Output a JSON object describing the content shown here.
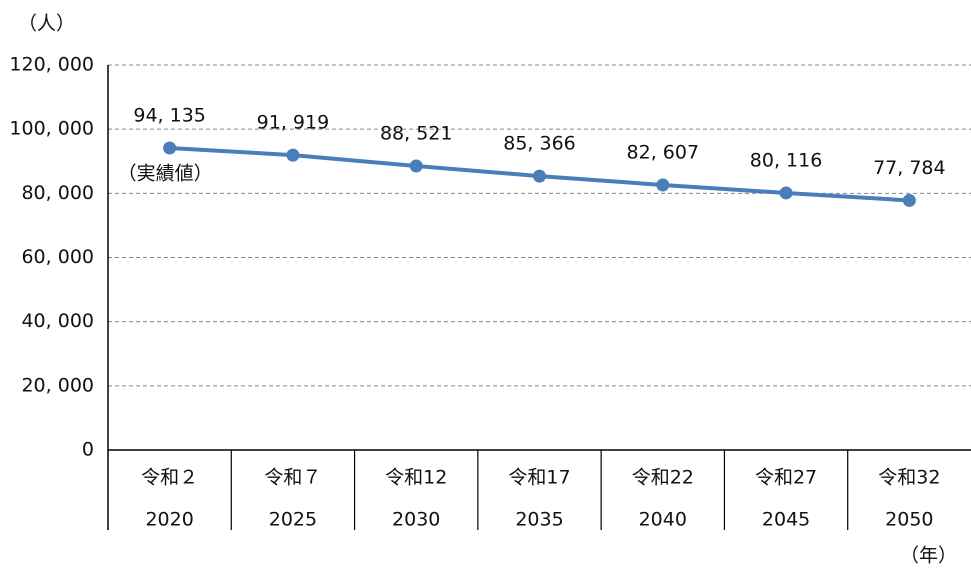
{
  "chart_data": {
    "type": "line",
    "y_unit": "（人）",
    "x_unit": "（年）",
    "categories": [
      "令和２",
      "令和７",
      "令和12",
      "令和17",
      "令和22",
      "令和27",
      "令和32"
    ],
    "category_years": [
      "2020",
      "2025",
      "2030",
      "2035",
      "2040",
      "2045",
      "2050"
    ],
    "series": [
      {
        "color": "#4a7ebb",
        "values": [
          94135,
          91919,
          88521,
          85366,
          82607,
          80116,
          77784
        ],
        "value_labels": [
          "94, 135",
          "91, 919",
          "88, 521",
          "85, 366",
          "82, 607",
          "80, 116",
          "77, 784"
        ]
      }
    ],
    "annotation": "（実績値）",
    "ylim": [
      0,
      120000
    ],
    "yticks": [
      0,
      {
        "value": 20000,
        "label": "20, 000"
      },
      {
        "value": 40000,
        "label": "40, 000"
      },
      {
        "value": 60000,
        "label": "60, 000"
      },
      {
        "value": 80000,
        "label": "80, 000"
      },
      {
        "value": 100000,
        "label": "100, 000"
      },
      {
        "value": 120000,
        "label": "120, 000"
      }
    ],
    "grid": true
  }
}
